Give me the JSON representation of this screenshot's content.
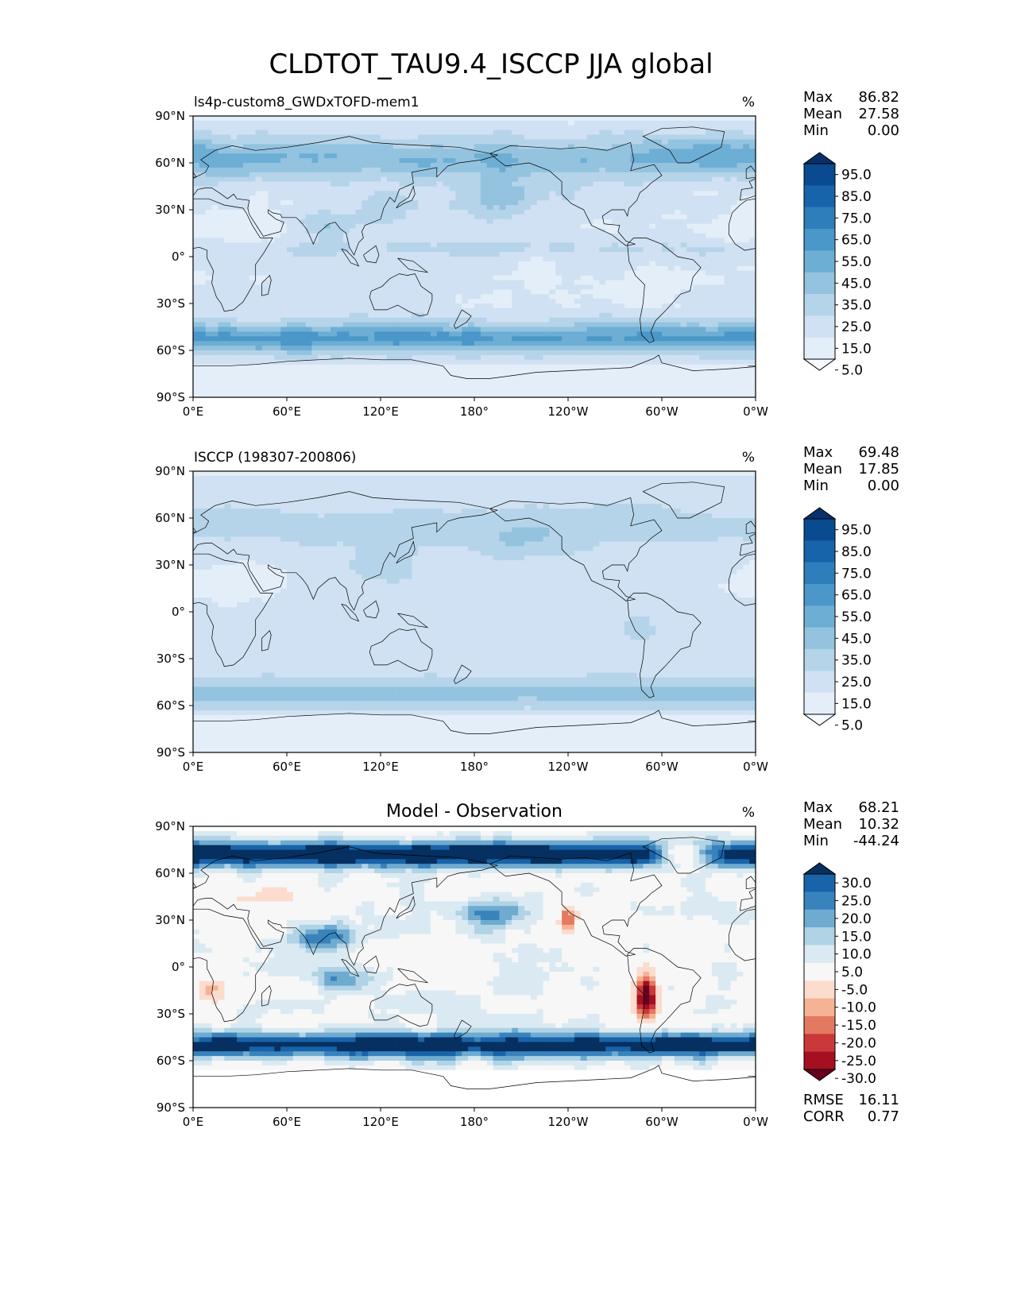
{
  "figure_title": "CLDTOT_TAU9.4_ISCCP JJA global",
  "lat_ticks": [
    "90°N",
    "60°N",
    "30°N",
    "0°",
    "30°S",
    "60°S",
    "90°S"
  ],
  "lon_ticks": [
    "0°E",
    "60°E",
    "120°E",
    "180°",
    "120°W",
    "60°W",
    "0°W"
  ],
  "colors": {
    "blues": [
      "#f7fbff",
      "#e3eef9",
      "#cfe1f2",
      "#b5d4e9",
      "#93c3df",
      "#6daed5",
      "#4b97c9",
      "#2f7ebc",
      "#1864aa",
      "#0a4a90",
      "#08306b"
    ],
    "diverging": [
      "#67001f",
      "#a50f22",
      "#cb383a",
      "#e47961",
      "#f6b294",
      "#fbdccd",
      "#f7f7f7",
      "#dbeaf2",
      "#b0d3e6",
      "#6fabd0",
      "#3983bd",
      "#1863a9",
      "#053061"
    ]
  },
  "chart_data": [
    {
      "type": "heatmap",
      "subtitle_left": "ls4p-custom8_GWDxTOFD-mem1",
      "units": "%",
      "stats": [
        {
          "label": "Max",
          "value": "86.82"
        },
        {
          "label": "Mean",
          "value": "27.58"
        },
        {
          "label": "Min",
          "value": "0.00"
        }
      ],
      "colorbar": {
        "extend": "both",
        "levels": [
          0,
          10,
          20,
          30,
          40,
          50,
          60,
          70,
          80,
          90,
          100
        ],
        "tick_labels": [
          "95.0",
          "85.0",
          "75.0",
          "65.0",
          "55.0",
          "45.0",
          "35.0",
          "25.0",
          "15.0",
          "5.0"
        ]
      },
      "xlim": [
        0,
        360
      ],
      "ylim": [
        -90,
        90
      ]
    },
    {
      "type": "heatmap",
      "subtitle_left": "ISCCP (198307-200806)",
      "units": "%",
      "stats": [
        {
          "label": "Max",
          "value": "69.48"
        },
        {
          "label": "Mean",
          "value": "17.85"
        },
        {
          "label": "Min",
          "value": "0.00"
        }
      ],
      "colorbar": {
        "extend": "both",
        "levels": [
          0,
          10,
          20,
          30,
          40,
          50,
          60,
          70,
          80,
          90,
          100
        ],
        "tick_labels": [
          "95.0",
          "85.0",
          "75.0",
          "65.0",
          "55.0",
          "45.0",
          "35.0",
          "25.0",
          "15.0",
          "5.0"
        ]
      },
      "xlim": [
        0,
        360
      ],
      "ylim": [
        -90,
        90
      ]
    },
    {
      "type": "heatmap",
      "subtitle_center": "Model - Observation",
      "units": "%",
      "stats": [
        {
          "label": "Max",
          "value": "68.21"
        },
        {
          "label": "Mean",
          "value": "10.32"
        },
        {
          "label": "Min",
          "value": "-44.24"
        }
      ],
      "colorbar": {
        "extend": "both",
        "tick_labels": [
          "30.0",
          "25.0",
          "20.0",
          "15.0",
          "10.0",
          "5.0",
          "-5.0",
          "-10.0",
          "-15.0",
          "-20.0",
          "-25.0",
          "-30.0"
        ]
      },
      "metrics": [
        {
          "label": "RMSE",
          "value": "16.11"
        },
        {
          "label": "CORR",
          "value": "0.77"
        }
      ],
      "xlim": [
        0,
        360
      ],
      "ylim": [
        -90,
        90
      ]
    }
  ]
}
